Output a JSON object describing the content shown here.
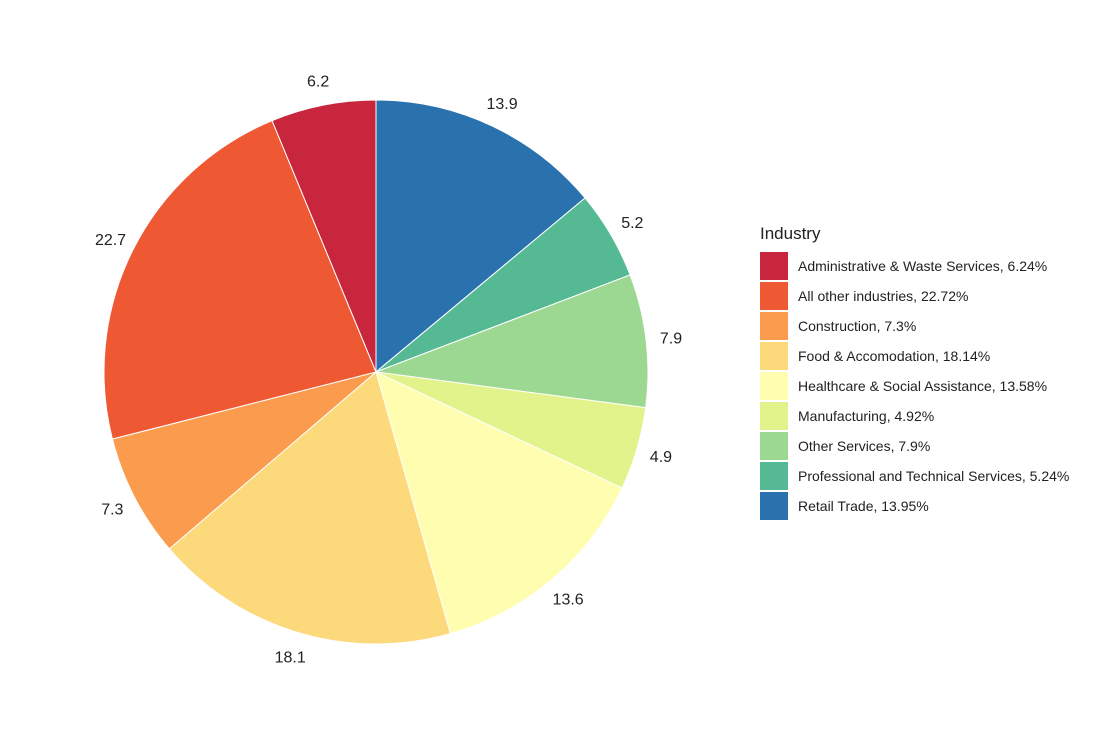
{
  "chart_data": {
    "type": "pie",
    "title": "",
    "legend_title": "Industry",
    "legend_position": "right",
    "slices": [
      {
        "name": "Administrative & Waste Services",
        "value": 6.24,
        "label": "6.2",
        "legend": "Administrative & Waste Services, 6.24%",
        "color": "#C8263D"
      },
      {
        "name": "All other industries",
        "value": 22.72,
        "label": "22.7",
        "legend": "All other industries, 22.72%",
        "color": "#EE5833"
      },
      {
        "name": "Construction",
        "value": 7.3,
        "label": "7.3",
        "legend": "Construction, 7.3%",
        "color": "#FA9B4E"
      },
      {
        "name": "Food & Accomodation",
        "value": 18.14,
        "label": "18.1",
        "legend": "Food & Accomodation, 18.14%",
        "color": "#FCD97A"
      },
      {
        "name": "Healthcare & Social Assistance",
        "value": 13.58,
        "label": "13.6",
        "legend": "Healthcare & Social Assistance, 13.58%",
        "color": "#FEFDB0"
      },
      {
        "name": "Manufacturing",
        "value": 4.92,
        "label": "4.9",
        "legend": "Manufacturing, 4.92%",
        "color": "#E1F38A"
      },
      {
        "name": "Other Services",
        "value": 7.9,
        "label": "7.9",
        "legend": "Other Services, 7.9%",
        "color": "#9DD893"
      },
      {
        "name": "Professional and Technical Services",
        "value": 5.24,
        "label": "5.2",
        "legend": "Professional and Technical Services, 5.24%",
        "color": "#55B993"
      },
      {
        "name": "Retail Trade",
        "value": 13.95,
        "label": "13.9",
        "legend": "Retail Trade, 13.95%",
        "color": "#2A72AE"
      }
    ]
  }
}
